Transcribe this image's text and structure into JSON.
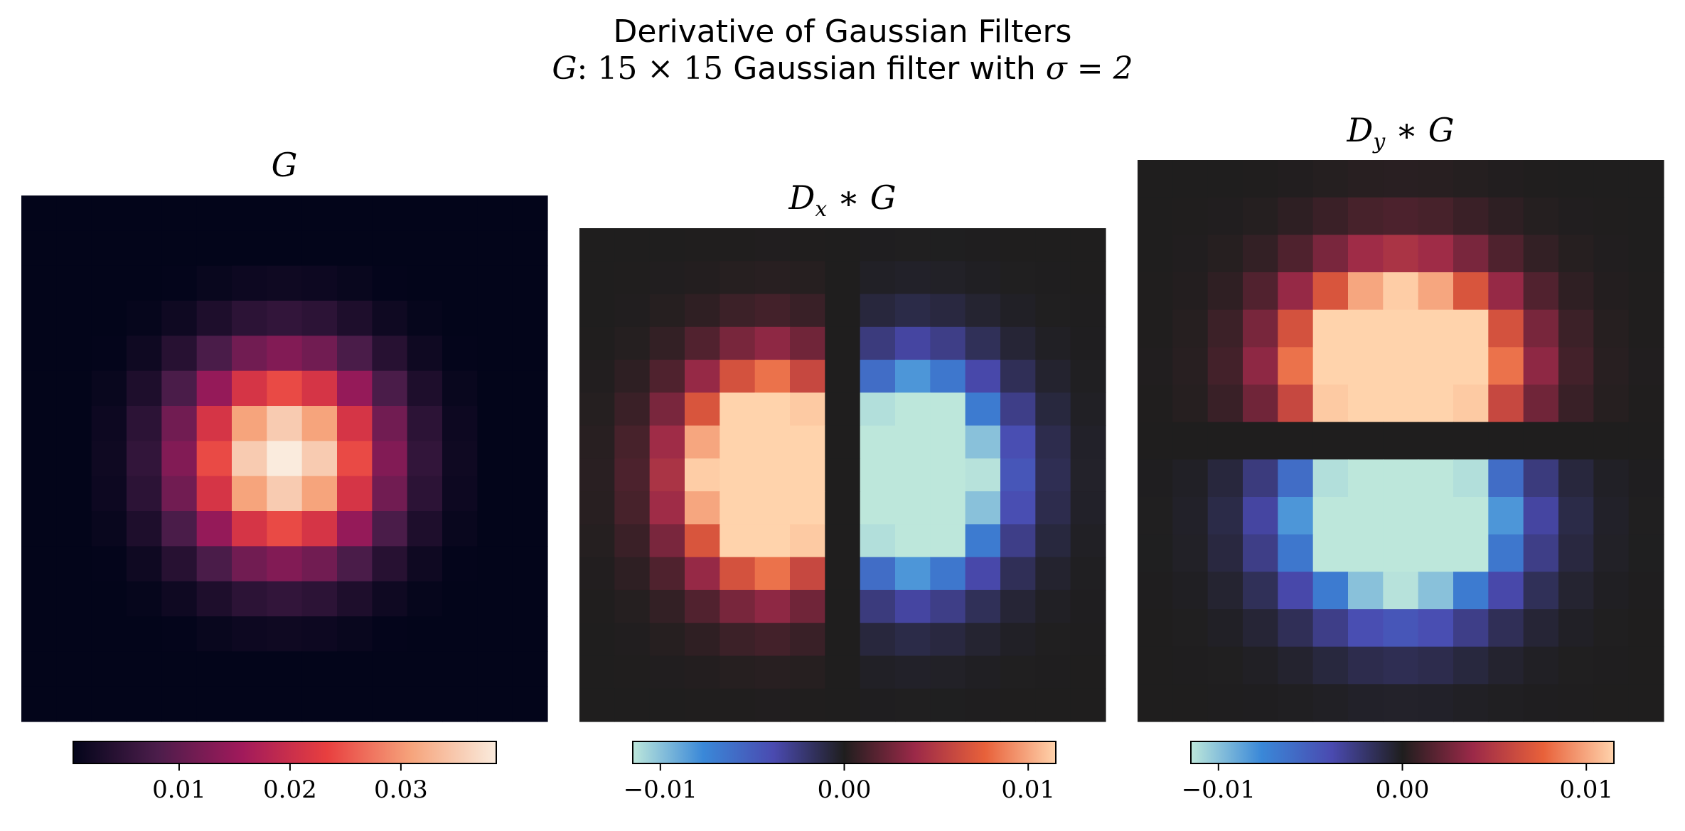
{
  "title": {
    "line1": "Derivative of Gaussian Filters",
    "line2_prefix": "G",
    "line2_dims": ": 15 × 15",
    "line2_text": "Gaussian filter with",
    "line2_sigma": "σ = 2"
  },
  "chart_data": [
    {
      "type": "heatmap",
      "title": "G",
      "size": 15,
      "sigma": 2,
      "matrix": "gaussian",
      "colormap": "rocket",
      "colorbar": {
        "range": [
          0.00045,
          0.0386
        ],
        "ticks": [
          0.01,
          0.02,
          0.03
        ],
        "tick_labels": [
          "0.01",
          "0.02",
          "0.03"
        ]
      },
      "colors": {
        "stops": [
          "#03051a",
          "#4c1d4b",
          "#a11a5b",
          "#e83f3f",
          "#f6a47c",
          "#faebdd"
        ]
      }
    },
    {
      "type": "heatmap",
      "title": "Dx * G",
      "title_base": "D",
      "title_sub": "x",
      "title_rest": " ∗ G",
      "size": 15,
      "matrix": "derivative-x",
      "colormap": "icefire (reversed)",
      "colorbar": {
        "range": [
          -0.0115,
          0.0115
        ],
        "ticks": [
          -0.01,
          0.0,
          0.01
        ],
        "tick_labels": [
          "−0.01",
          "0.00",
          "0.01"
        ]
      },
      "colors": {
        "stops": [
          "#bde7db",
          "#3a88d8",
          "#4a4ab0",
          "#1f1e1e",
          "#9b2948",
          "#e8613a",
          "#ffd3ac"
        ]
      }
    },
    {
      "type": "heatmap",
      "title": "Dy * G",
      "title_base": "D",
      "title_sub": "y",
      "title_rest": " ∗ G",
      "size": 15,
      "matrix": "derivative-y",
      "colormap": "icefire (reversed)",
      "colorbar": {
        "range": [
          -0.0115,
          0.0115
        ],
        "ticks": [
          -0.01,
          0.0,
          0.01
        ],
        "tick_labels": [
          "−0.01",
          "0.00",
          "0.01"
        ]
      },
      "colors": {
        "stops": [
          "#bde7db",
          "#3a88d8",
          "#4a4ab0",
          "#1f1e1e",
          "#9b2948",
          "#e8613a",
          "#ffd3ac"
        ]
      }
    }
  ]
}
